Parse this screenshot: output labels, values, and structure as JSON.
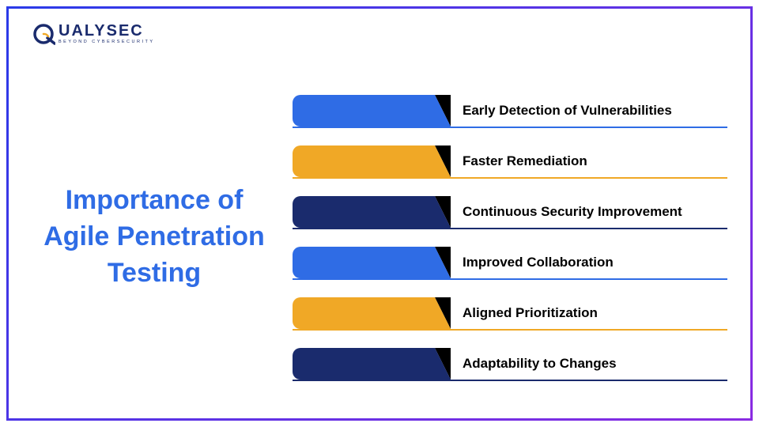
{
  "logo": {
    "main": "UALYSEC",
    "tagline": "BEYOND CYBERSECURITY",
    "color": "#1a2b6d",
    "accent": "#f0a826"
  },
  "title": {
    "text": "Importance of Agile Penetration Testing",
    "color": "#2f6ce5",
    "fontsize": 34
  },
  "rows": [
    {
      "label": "Early Detection of Vulnerabilities",
      "color": "#2f6ce5"
    },
    {
      "label": "Faster Remediation",
      "color": "#f0a826"
    },
    {
      "label": "Continuous Security Improvement",
      "color": "#1a2b6d"
    },
    {
      "label": "Improved Collaboration",
      "color": "#2f6ce5"
    },
    {
      "label": "Aligned Prioritization",
      "color": "#f0a826"
    },
    {
      "label": "Adaptability to Changes",
      "color": "#1a2b6d"
    }
  ],
  "layout": {
    "frame_border_gradient": [
      "#2a3ae8",
      "#8a2be2"
    ],
    "pill_width": 180,
    "pill_height": 40,
    "row_gap": 24,
    "label_fontsize": 17,
    "label_weight": 700,
    "label_color": "#000000",
    "underline_thickness": 2
  }
}
